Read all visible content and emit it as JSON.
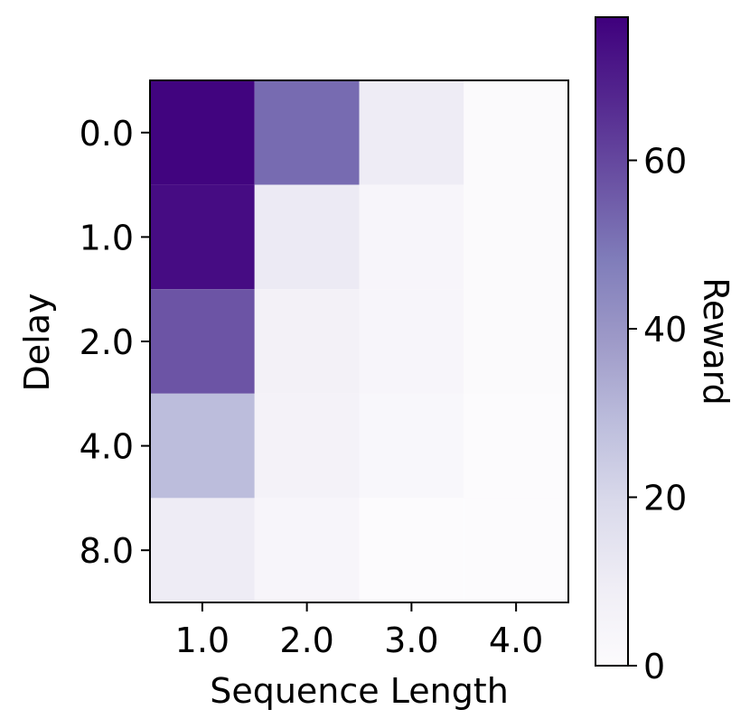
{
  "chart_data": {
    "type": "heatmap",
    "title": "",
    "xlabel": "Sequence Length",
    "ylabel": "Delay",
    "x_categories": [
      "1.0",
      "2.0",
      "3.0",
      "4.0"
    ],
    "y_categories": [
      "0.0",
      "1.0",
      "2.0",
      "4.0",
      "8.0"
    ],
    "values": [
      [
        76,
        52,
        10,
        1
      ],
      [
        74,
        11,
        4,
        1
      ],
      [
        57,
        7,
        4,
        1
      ],
      [
        29,
        6,
        3,
        0
      ],
      [
        10,
        4,
        0,
        0
      ]
    ],
    "colorbar": {
      "label": "Reward",
      "range": [
        0,
        77
      ],
      "ticks": [
        0,
        20,
        40,
        60
      ],
      "tick_labels": [
        "0",
        "20",
        "40",
        "60"
      ],
      "colormap": "Purples",
      "color_low": "#fcfbfd",
      "color_high": "#3f007d"
    }
  }
}
